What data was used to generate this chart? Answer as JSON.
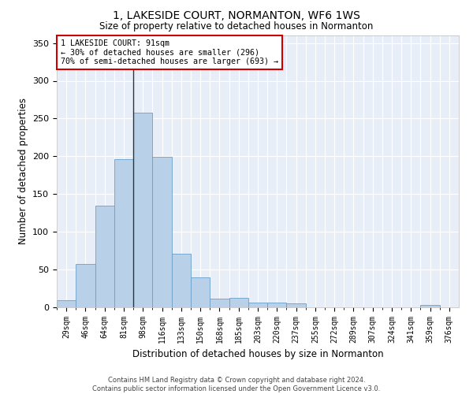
{
  "title": "1, LAKESIDE COURT, NORMANTON, WF6 1WS",
  "subtitle": "Size of property relative to detached houses in Normanton",
  "xlabel": "Distribution of detached houses by size in Normanton",
  "ylabel": "Number of detached properties",
  "bar_color": "#b8d0e8",
  "bar_edge_color": "#6a9fc8",
  "background_color": "#e8eef8",
  "grid_color": "#ffffff",
  "categories": [
    "29sqm",
    "46sqm",
    "64sqm",
    "81sqm",
    "98sqm",
    "116sqm",
    "133sqm",
    "150sqm",
    "168sqm",
    "185sqm",
    "203sqm",
    "220sqm",
    "237sqm",
    "255sqm",
    "272sqm",
    "289sqm",
    "307sqm",
    "324sqm",
    "341sqm",
    "359sqm",
    "376sqm"
  ],
  "values": [
    9,
    57,
    135,
    196,
    258,
    199,
    71,
    40,
    12,
    13,
    6,
    6,
    5,
    0,
    0,
    0,
    0,
    0,
    0,
    3,
    0
  ],
  "ylim": [
    0,
    360
  ],
  "yticks": [
    0,
    50,
    100,
    150,
    200,
    250,
    300,
    350
  ],
  "property_size": 91,
  "property_name": "1 LAKESIDE COURT",
  "pct_smaller": 30,
  "count_smaller": 296,
  "pct_larger_semi": 70,
  "count_larger_semi": 693,
  "annotation_box_color": "#ffffff",
  "annotation_box_edge": "#cc0000",
  "vline_color": "#333333",
  "vline_bin_index": 4,
  "footer_line1": "Contains HM Land Registry data © Crown copyright and database right 2024.",
  "footer_line2": "Contains public sector information licensed under the Open Government Licence v3.0."
}
